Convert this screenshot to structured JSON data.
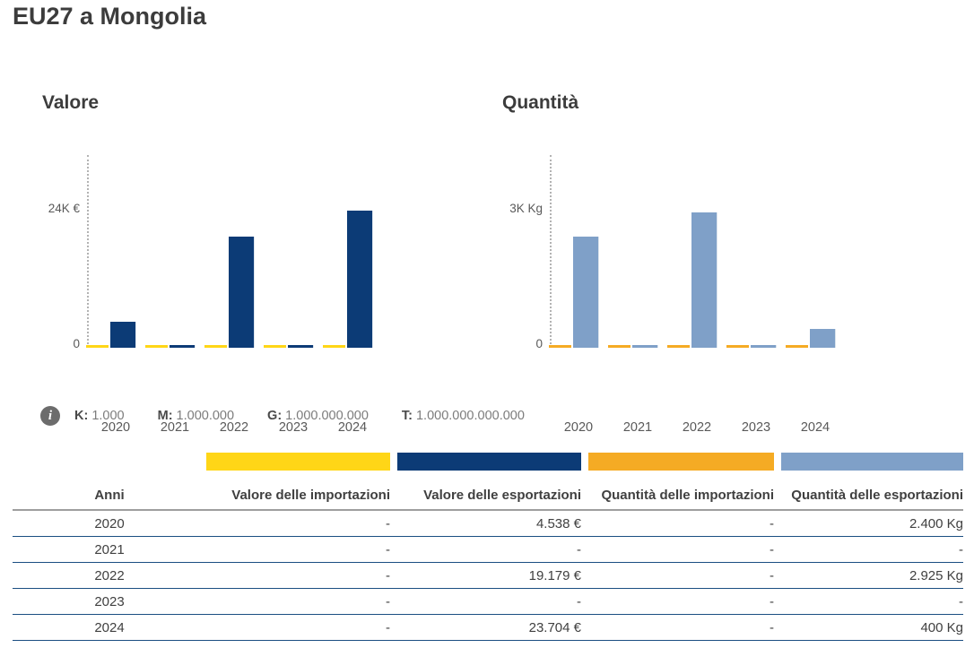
{
  "page_title": "EU27 a Mongolia",
  "colors": {
    "value_imports": "#FFD617",
    "value_exports": "#0C3B76",
    "qty_imports": "#F5AB24",
    "qty_exports": "#7FA0C8",
    "title_text": "#3C3C3C",
    "axis_text": "#595959",
    "table_text": "#404040",
    "header_rule": "#9E9E9E",
    "row_rule": "#1B4E82"
  },
  "info_legend": {
    "icon": "info-icon",
    "items": [
      {
        "label": "K:",
        "value": "1.000"
      },
      {
        "label": "M:",
        "value": "1.000.000"
      },
      {
        "label": "G:",
        "value": "1.000.000.000"
      },
      {
        "label": "T:",
        "value": "1.000.000.000.000"
      }
    ]
  },
  "chart_data": [
    {
      "type": "bar",
      "title": "Valore",
      "categories": [
        "2020",
        "2021",
        "2022",
        "2023",
        "2024"
      ],
      "series": [
        {
          "name": "Valore delle importazioni",
          "color": "#FFD617",
          "values": [
            null,
            null,
            null,
            null,
            null
          ]
        },
        {
          "name": "Valore delle esportazioni",
          "color": "#0C3B76",
          "values": [
            4538,
            null,
            19179,
            null,
            23704
          ]
        }
      ],
      "ylabel_max": "24K €",
      "ylabel_zero": "0",
      "y_max": 24000,
      "ylim": [
        0,
        24000
      ],
      "grid": false,
      "legend_position": "table-swatches-below"
    },
    {
      "type": "bar",
      "title": "Quantità",
      "categories": [
        "2020",
        "2021",
        "2022",
        "2023",
        "2024"
      ],
      "series": [
        {
          "name": "Quantità delle importazioni",
          "color": "#F5AB24",
          "values": [
            null,
            null,
            null,
            null,
            null
          ]
        },
        {
          "name": "Quantità delle esportazioni",
          "color": "#7FA0C8",
          "values": [
            2400,
            null,
            2925,
            null,
            400
          ]
        }
      ],
      "ylabel_max": "3K Kg",
      "ylabel_zero": "0",
      "y_max": 3000,
      "ylim": [
        0,
        3000
      ],
      "grid": false,
      "legend_position": "table-swatches-below"
    }
  ],
  "table": {
    "columns": [
      {
        "label": "Anni",
        "align": "center",
        "swatch": null
      },
      {
        "label": "Valore delle importazioni",
        "align": "right",
        "swatch": "#FFD617"
      },
      {
        "label": "Valore delle esportazioni",
        "align": "right",
        "swatch": "#0C3B76"
      },
      {
        "label": "Quantità delle importazioni",
        "align": "right",
        "swatch": "#F5AB24"
      },
      {
        "label": "Quantità delle esportazioni",
        "align": "right",
        "swatch": "#7FA0C8"
      }
    ],
    "rows": [
      [
        "2020",
        "-",
        "4.538 €",
        "-",
        "2.400 Kg"
      ],
      [
        "2021",
        "-",
        "-",
        "-",
        "-"
      ],
      [
        "2022",
        "-",
        "19.179 €",
        "-",
        "2.925 Kg"
      ],
      [
        "2023",
        "-",
        "-",
        "-",
        "-"
      ],
      [
        "2024",
        "-",
        "23.704 €",
        "-",
        "400 Kg"
      ]
    ]
  }
}
